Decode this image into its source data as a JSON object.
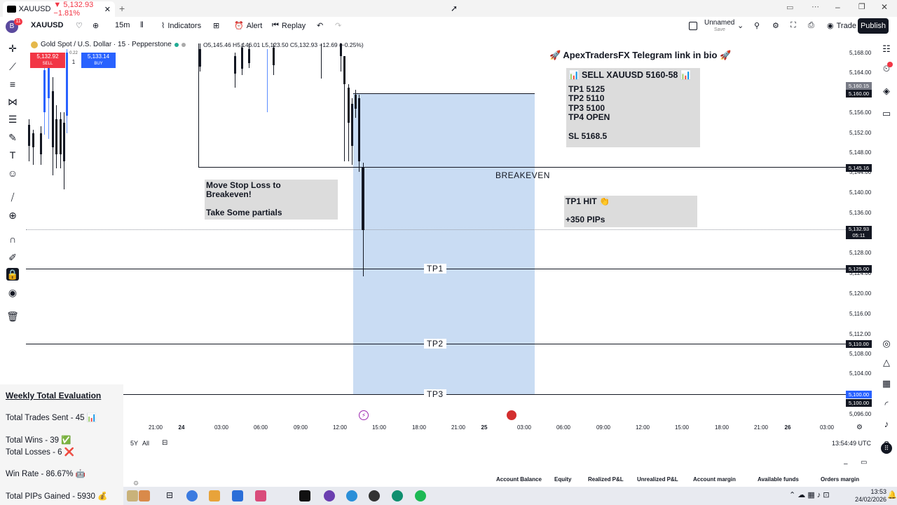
{
  "browser": {
    "tab_title": "XAUUSD",
    "tab_change": "▼ 5,132.93 −1.81%",
    "new_tab": "+"
  },
  "toolbar": {
    "symbol": "XAUUSD",
    "interval": "15m",
    "indicators": "Indicators",
    "alert": "Alert",
    "replay": "Replay",
    "layout_name": "Unnamed",
    "layout_status": "Save",
    "trade": "Trade",
    "publish": "Publish",
    "notif_badge": "11"
  },
  "legend": {
    "title": "Gold Spot / U.S. Dollar · 15 · Pepperstone",
    "ohlc": "O5,145.46 H5,146.01 L5,123.50 C5,132.93 −12.69 (−0.25%)",
    "sell_price": "5,132.92",
    "sell_label": "SELL",
    "spread": "0.22",
    "qty": "1",
    "buy_price": "5,133.14",
    "buy_label": "BUY"
  },
  "price_scale": [
    "5,168.00",
    "5,164.00",
    "5,156.00",
    "5,152.00",
    "5,148.00",
    "5,144.00",
    "5,140.00",
    "5,136.00",
    "5,128.00",
    "5,124.00",
    "5,120.00",
    "5,116.00",
    "5,112.00",
    "5,108.00",
    "5,104.00",
    "5,096.00"
  ],
  "price_tags": {
    "top1": "5,160.15",
    "top2": "5,160.00",
    "be": "5,145.16",
    "current": "5,132.93",
    "countdown": "05:11",
    "tp1": "5,125.00",
    "tp2": "5,110.00",
    "tp3a": "5,100.00",
    "tp3b": "5,100.00"
  },
  "time_axis": [
    "21:00",
    "24",
    "03:00",
    "06:00",
    "09:00",
    "12:00",
    "15:00",
    "18:00",
    "21:00",
    "25",
    "03:00",
    "06:00",
    "09:00",
    "12:00",
    "15:00",
    "18:00",
    "21:00",
    "26",
    "03:00"
  ],
  "annotations": {
    "telegram": "🚀 ApexTradersFX Telegram link in bio 🚀",
    "signal_title": "📊 SELL XAUUSD 5160-58 📊",
    "tp1": "TP1 5125",
    "tp2": "TP2 5110",
    "tp3": "TP3 5100",
    "tp4": "TP4 OPEN",
    "sl": "SL 5168.5",
    "move_sl_1": "Move Stop Loss to",
    "move_sl_2": "Breakeven!",
    "partials": "Take Some partials",
    "breakeven": "BREAKEVEN",
    "tp1_hit": "TP1 HIT 👏",
    "pips": "+350 PIPs",
    "tp1_line": "TP1",
    "tp2_line": "TP2",
    "tp3_line": "TP3"
  },
  "weekly": {
    "title": "Weekly Total Evaluation",
    "trades": "Total Trades Sent - 45 📊",
    "wins": "Total Wins - 39 ✅",
    "losses": "Total Losses - 6 ❌",
    "winrate": "Win Rate - 86.67% 🤖",
    "pips": "Total PIPs Gained - 5930 💰"
  },
  "range_bar": {
    "r5y": "5Y",
    "all": "All",
    "clock": "13:54:49 UTC"
  },
  "account": {
    "balance": "Account Balance",
    "equity": "Equity",
    "realized": "Realized P&L",
    "unrealized": "Unrealized P&L",
    "margin": "Account margin",
    "funds": "Available funds",
    "orders": "Orders margin"
  },
  "taskbar": {
    "time": "13:53",
    "date": "24/02/2026"
  },
  "colors": {
    "sell": "#f23645",
    "buy": "#2962ff",
    "target_zone": "#c9dcf3",
    "note_bg": "#dcdcdc"
  }
}
